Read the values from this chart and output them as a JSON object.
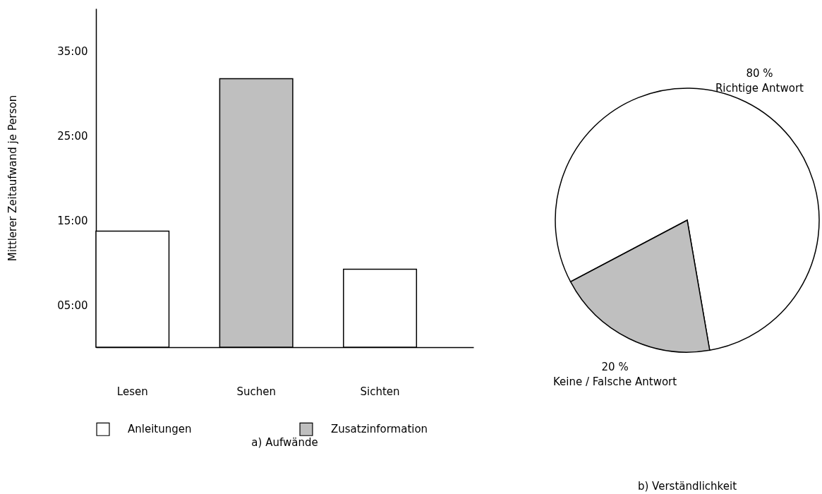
{
  "chart_data": [
    {
      "type": "bar",
      "title": "a) Aufwände",
      "ylabel": "Mittlerer Zeitaufwand je Person",
      "categories": [
        "Lesen",
        "Suchen",
        "Sichten"
      ],
      "series": [
        {
          "name": "Anleitungen",
          "color": "#ffffff",
          "values": [
            13.7,
            null,
            9.2
          ]
        },
        {
          "name": "Zusatzinformation",
          "color": "#bfbfbf",
          "values": [
            null,
            31.7,
            null
          ]
        }
      ],
      "ylim": [
        0,
        40
      ],
      "yticks": [
        {
          "value": 5,
          "label": "05:00"
        },
        {
          "value": 15,
          "label": "15:00"
        },
        {
          "value": 25,
          "label": "25:00"
        },
        {
          "value": 35,
          "label": "35:00"
        }
      ],
      "legend": "bottom"
    },
    {
      "type": "pie",
      "title": "b) Verständlichkeit",
      "categories": [
        "Richtige Antwort",
        "Keine / Falsche Antwort"
      ],
      "values": [
        80,
        20
      ],
      "colors": [
        "#ffffff",
        "#bfbfbf"
      ],
      "value_labels": [
        "80 %",
        "20 %"
      ]
    }
  ]
}
